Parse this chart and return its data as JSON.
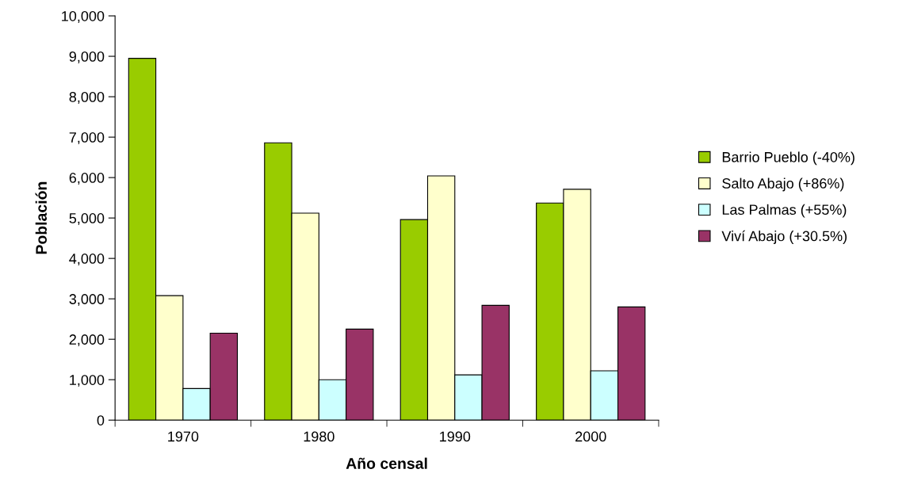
{
  "chart_data": {
    "type": "bar",
    "xlabel": "Año censal",
    "ylabel": "Población",
    "categories": [
      "1970",
      "1980",
      "1990",
      "2000"
    ],
    "series": [
      {
        "name": "Barrio Pueblo (-40%)",
        "color": "#99cc00",
        "values": [
          8950,
          6860,
          4960,
          5370
        ]
      },
      {
        "name": "Salto Abajo (+86%)",
        "color": "#ffffcc",
        "values": [
          3080,
          5120,
          6040,
          5710
        ]
      },
      {
        "name": "Las Palmas (+55%)",
        "color": "#ccffff",
        "values": [
          780,
          1000,
          1120,
          1220
        ]
      },
      {
        "name": "Viví Abajo (+30.5%)",
        "color": "#993366",
        "values": [
          2150,
          2250,
          2840,
          2800
        ]
      }
    ],
    "ylim": [
      0,
      10000
    ],
    "yticks": [
      {
        "value": 0,
        "label": "0"
      },
      {
        "value": 1000,
        "label": "1,000"
      },
      {
        "value": 2000,
        "label": "2,000"
      },
      {
        "value": 3000,
        "label": "3,000"
      },
      {
        "value": 4000,
        "label": "4,000"
      },
      {
        "value": 5000,
        "label": "5,000"
      },
      {
        "value": 6000,
        "label": "6,000"
      },
      {
        "value": 7000,
        "label": "7,000"
      },
      {
        "value": 8000,
        "label": "8,000"
      },
      {
        "value": 9000,
        "label": "9,000"
      },
      {
        "value": 10000,
        "label": "10,000"
      }
    ],
    "legend": "right",
    "grid": false
  }
}
